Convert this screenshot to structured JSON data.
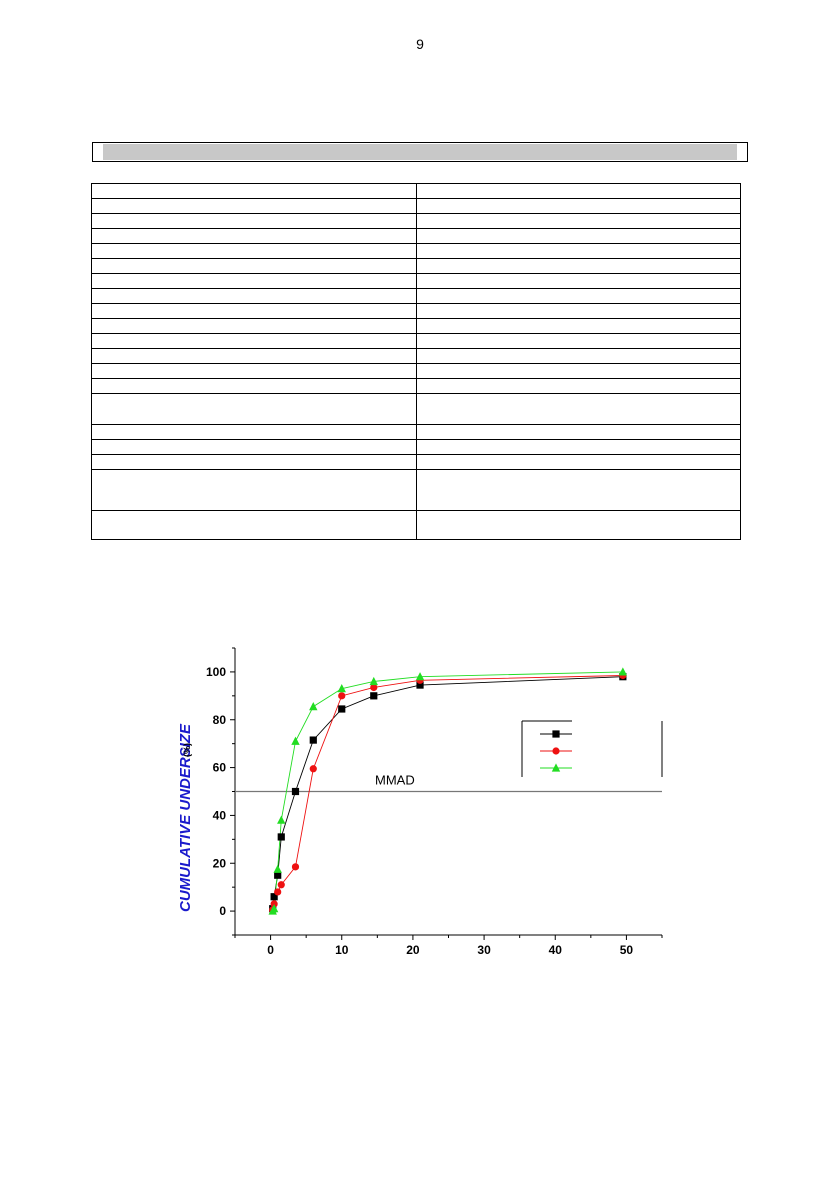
{
  "page": {
    "number": "9"
  },
  "table": {
    "rows": [
      {
        "cells": [
          "",
          ""
        ],
        "height": "normal"
      },
      {
        "cells": [
          "",
          ""
        ],
        "height": "normal"
      },
      {
        "cells": [
          "",
          ""
        ],
        "height": "normal"
      },
      {
        "cells": [
          "",
          ""
        ],
        "height": "normal"
      },
      {
        "cells": [
          "",
          ""
        ],
        "height": "normal"
      },
      {
        "cells": [
          "",
          ""
        ],
        "height": "normal"
      },
      {
        "cells": [
          "",
          ""
        ],
        "height": "normal"
      },
      {
        "cells": [
          "",
          ""
        ],
        "height": "normal"
      },
      {
        "cells": [
          "",
          ""
        ],
        "height": "normal"
      },
      {
        "cells": [
          "",
          ""
        ],
        "height": "normal"
      },
      {
        "cells": [
          "",
          ""
        ],
        "height": "normal"
      },
      {
        "cells": [
          "",
          ""
        ],
        "height": "normal"
      },
      {
        "cells": [
          "",
          ""
        ],
        "height": "normal"
      },
      {
        "cells": [
          "",
          ""
        ],
        "height": "normal"
      },
      {
        "cells": [
          "",
          ""
        ],
        "height": "tall"
      },
      {
        "cells": [
          "",
          ""
        ],
        "height": "normal"
      },
      {
        "cells": [
          "",
          ""
        ],
        "height": "normal"
      },
      {
        "cells": [
          "",
          ""
        ],
        "height": "normal"
      },
      {
        "cells": [
          "",
          ""
        ],
        "height": "taller"
      },
      {
        "cells": [
          "",
          ""
        ],
        "height": "last"
      }
    ]
  },
  "chart_data": {
    "type": "line",
    "title": "",
    "xlabel": "",
    "ylabel": "CUMULATIVE UNDERSIZE",
    "ylabel_unit": "(%)",
    "xlim": [
      -5,
      55
    ],
    "ylim": [
      -10,
      110
    ],
    "x_ticks": [
      0,
      10,
      20,
      30,
      40,
      50
    ],
    "y_ticks": [
      0,
      20,
      40,
      60,
      80,
      100
    ],
    "grid": false,
    "legend_position": "right",
    "reference_line": {
      "y": 50,
      "label": "MMAD",
      "color": "#777777"
    },
    "series": [
      {
        "color": "#000000",
        "marker": "square",
        "points": [
          [
            0.3,
            1
          ],
          [
            0.5,
            6
          ],
          [
            1,
            15
          ],
          [
            1.5,
            31
          ],
          [
            3.5,
            50
          ],
          [
            6,
            71.5
          ],
          [
            10,
            84.5
          ],
          [
            14.5,
            90
          ],
          [
            21,
            94.5
          ],
          [
            49.5,
            98
          ]
        ]
      },
      {
        "color": "#ee1111",
        "marker": "circle",
        "points": [
          [
            0.3,
            0.5
          ],
          [
            0.5,
            3
          ],
          [
            1,
            8
          ],
          [
            1.5,
            11
          ],
          [
            3.5,
            18.5
          ],
          [
            6,
            59.5
          ],
          [
            10,
            90
          ],
          [
            14.5,
            93.5
          ],
          [
            21,
            96.5
          ],
          [
            49.5,
            98.5
          ]
        ]
      },
      {
        "color": "#22dd22",
        "marker": "triangle",
        "points": [
          [
            0.3,
            0
          ],
          [
            0.5,
            1
          ],
          [
            1,
            17.5
          ],
          [
            1.5,
            38
          ],
          [
            3.5,
            71
          ],
          [
            6,
            85.5
          ],
          [
            10,
            93
          ],
          [
            14.5,
            96
          ],
          [
            21,
            98
          ],
          [
            49.5,
            100
          ]
        ]
      }
    ]
  }
}
